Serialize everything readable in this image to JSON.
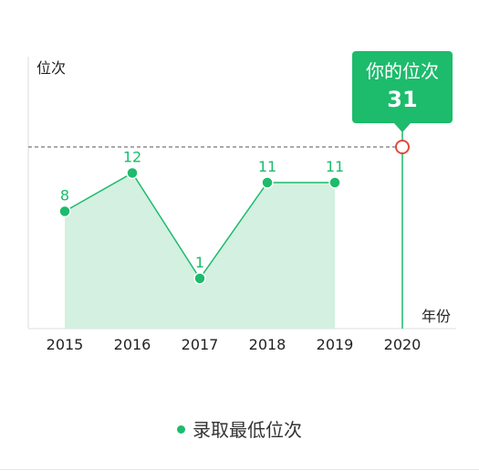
{
  "chart_data": {
    "type": "area",
    "categories": [
      "2015",
      "2016",
      "2017",
      "2018",
      "2019",
      "2020"
    ],
    "series": [
      {
        "name": "录取最低位次",
        "values": [
          8,
          12,
          1,
          11,
          11,
          null
        ],
        "data_labels": [
          "8",
          "12",
          "1",
          "11",
          "11"
        ]
      }
    ],
    "marker": {
      "category": "2020",
      "value": 31,
      "title": "你的位次",
      "value_label": "31"
    },
    "ylabel": "位次",
    "xlabel": "年份",
    "y_inverted": true,
    "grid": false,
    "legend_position": "bottom"
  },
  "colors": {
    "accent": "#1dbb6c",
    "area_fill": "#d3f0e0",
    "marker_ring": "#e04a3a",
    "dashed": "#555555",
    "axis": "#dddddd"
  },
  "legend": {
    "label": "录取最低位次"
  }
}
